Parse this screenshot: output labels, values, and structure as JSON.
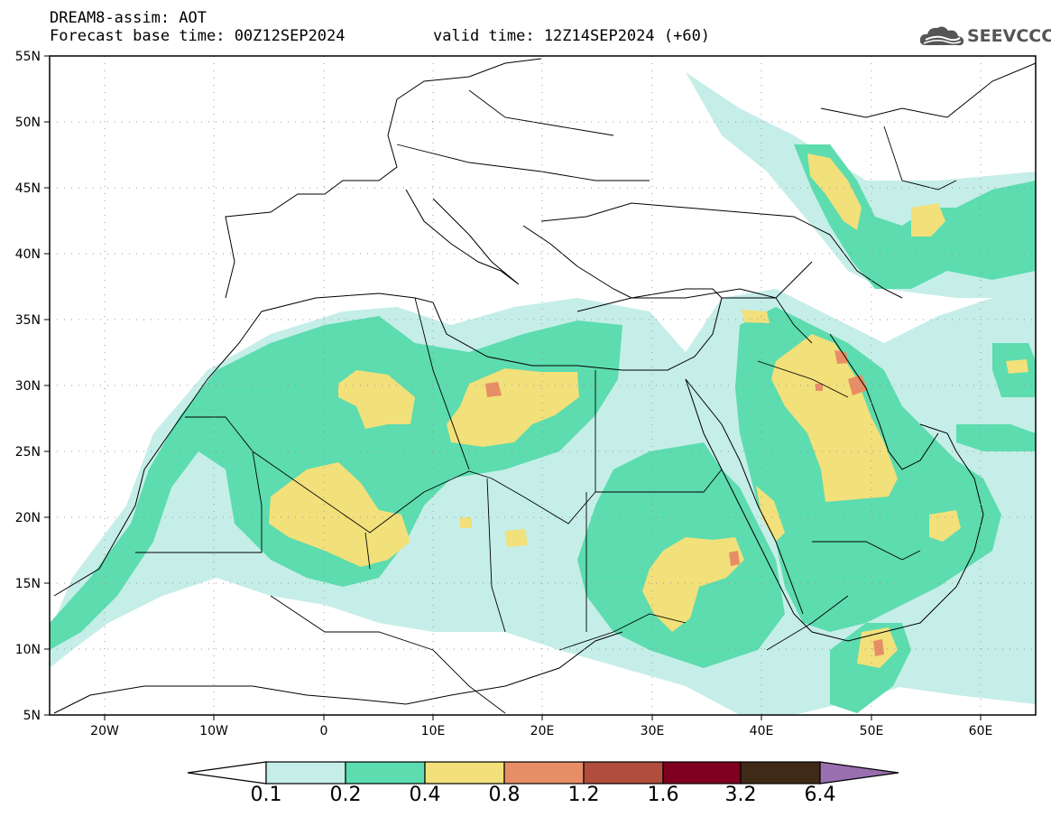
{
  "header": {
    "title": "DREAM8-assim: AOT",
    "base_time": "Forecast base time: 00Z12SEP2024",
    "valid_time": "valid time: 12Z14SEP2024 (+60)"
  },
  "logo": {
    "icon": "cloud-logo-icon",
    "text": "SEEVCCC"
  },
  "map": {
    "lon_range": [
      -25,
      65
    ],
    "lat_range": [
      5,
      55
    ],
    "lat_ticks": [
      "55N",
      "50N",
      "45N",
      "40N",
      "35N",
      "30N",
      "25N",
      "20N",
      "15N",
      "10N",
      "5N"
    ],
    "lon_ticks": [
      "20W",
      "10W",
      "0",
      "10E",
      "20E",
      "30E",
      "40E",
      "50E",
      "60E"
    ],
    "grid": "dotted"
  },
  "legend": {
    "levels": [
      "0.1",
      "0.2",
      "0.4",
      "0.8",
      "1.2",
      "1.6",
      "3.2",
      "6.4"
    ],
    "colors": {
      "below": "#ffffff",
      "c1": "#c5eee8",
      "c2": "#5cdcaf",
      "c3": "#f2e07a",
      "c4": "#e88e66",
      "c5": "#b04d3c",
      "c6": "#800020",
      "c7": "#3f2a18",
      "above": "#9a6fb0"
    }
  }
}
